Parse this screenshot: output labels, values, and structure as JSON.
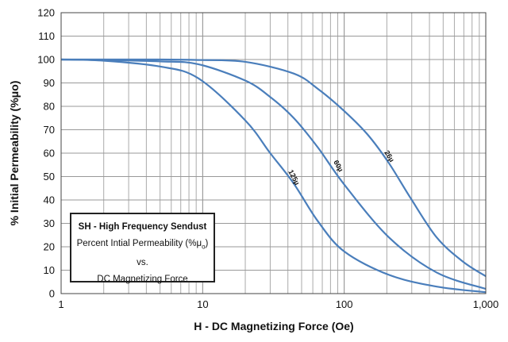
{
  "chart_data": {
    "type": "line",
    "x_scale": "log",
    "xlim": [
      1,
      1000
    ],
    "ylim": [
      0,
      120
    ],
    "grid": true,
    "xlabel": "H - DC Magnetizing Force (Oe)",
    "ylabel": "% Initial Permeability (%μo)",
    "x_ticks": [
      1,
      10,
      100,
      1000
    ],
    "x_tick_labels": [
      "1",
      "10",
      "100",
      "1,000"
    ],
    "y_ticks": [
      0,
      10,
      20,
      30,
      40,
      50,
      60,
      70,
      80,
      90,
      100,
      110,
      120
    ],
    "y_tick_labels": [
      "0",
      "10",
      "20",
      "30",
      "40",
      "50",
      "60",
      "70",
      "80",
      "90",
      "100",
      "110",
      "120"
    ],
    "legend": {
      "placement": "bottom-left",
      "title": "SH - High Frequency Sendust",
      "line2_text": "Percent Intial Permeability (%μ",
      "line2_sub": "o",
      "line2_end": ")",
      "line3": "vs.",
      "line4": "DC Magnetizing Force"
    },
    "series": [
      {
        "name": "125µ",
        "color": "#4a7ebb",
        "x": [
          1,
          2,
          5,
          9.3,
          20,
          30,
          44,
          65,
          100,
          207,
          450,
          1000
        ],
        "y": [
          100,
          99.5,
          97,
          92,
          74,
          60,
          47,
          31,
          18,
          8,
          3,
          0.6
        ]
      },
      {
        "name": "60µ",
        "color": "#4a7ebb",
        "x": [
          1,
          2,
          5,
          9.3,
          20,
          30,
          44,
          65,
          100,
          207,
          450,
          1000
        ],
        "y": [
          100,
          99.8,
          99.2,
          98,
          91,
          84,
          75,
          62.5,
          46.6,
          24,
          9,
          2
        ]
      },
      {
        "name": "26µ",
        "color": "#4a7ebb",
        "x": [
          1,
          5,
          9.3,
          20,
          44,
          65,
          100,
          146,
          207,
          293,
          450,
          692,
          1000
        ],
        "y": [
          100,
          100,
          99.8,
          99,
          94,
          87.5,
          78,
          68,
          55.7,
          41,
          24,
          13.6,
          7.4
        ]
      }
    ]
  }
}
